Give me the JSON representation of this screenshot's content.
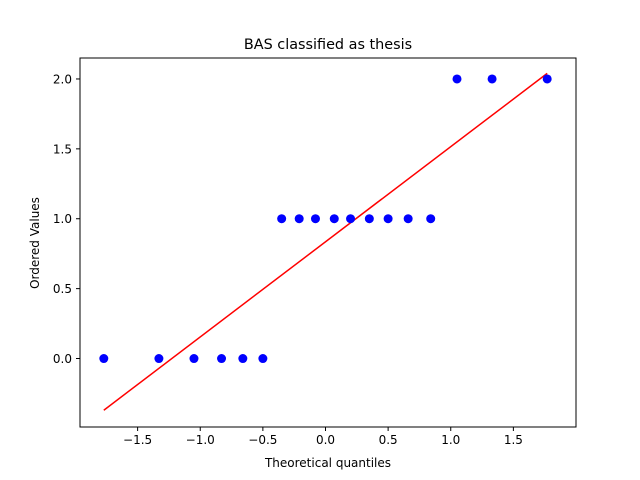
{
  "chart_data": {
    "type": "scatter",
    "title": "BAS classified as thesis",
    "xlabel": "Theoretical quantiles",
    "ylabel": "Ordered Values",
    "xlim": [
      -1.96,
      2.0
    ],
    "ylim": [
      -0.49,
      2.15
    ],
    "xticks": [
      -1.5,
      -1.0,
      -0.5,
      0.0,
      0.5,
      1.0,
      1.5
    ],
    "xtick_labels": [
      "−1.5",
      "−1.0",
      "−0.5",
      "0.0",
      "0.5",
      "1.0",
      "1.5"
    ],
    "yticks": [
      0.0,
      0.5,
      1.0,
      1.5,
      2.0
    ],
    "ytick_labels": [
      "0.0",
      "0.5",
      "1.0",
      "1.5",
      "2.0"
    ],
    "grid": false,
    "points_color": "#0000ff",
    "line_color": "#ff0000",
    "series": [
      {
        "type": "scatter",
        "x": [
          -1.77,
          -1.33,
          -1.05,
          -0.83,
          -0.66,
          -0.5,
          -0.35,
          -0.21,
          -0.08,
          0.07,
          0.2,
          0.35,
          0.5,
          0.66,
          0.84,
          1.05,
          1.33,
          1.77
        ],
        "y": [
          0,
          0,
          0,
          0,
          0,
          0,
          1,
          1,
          1,
          1,
          1,
          1,
          1,
          1,
          1,
          2,
          2,
          2
        ]
      },
      {
        "type": "line",
        "x": [
          -1.77,
          1.77
        ],
        "y": [
          -0.37,
          2.04
        ]
      }
    ]
  }
}
